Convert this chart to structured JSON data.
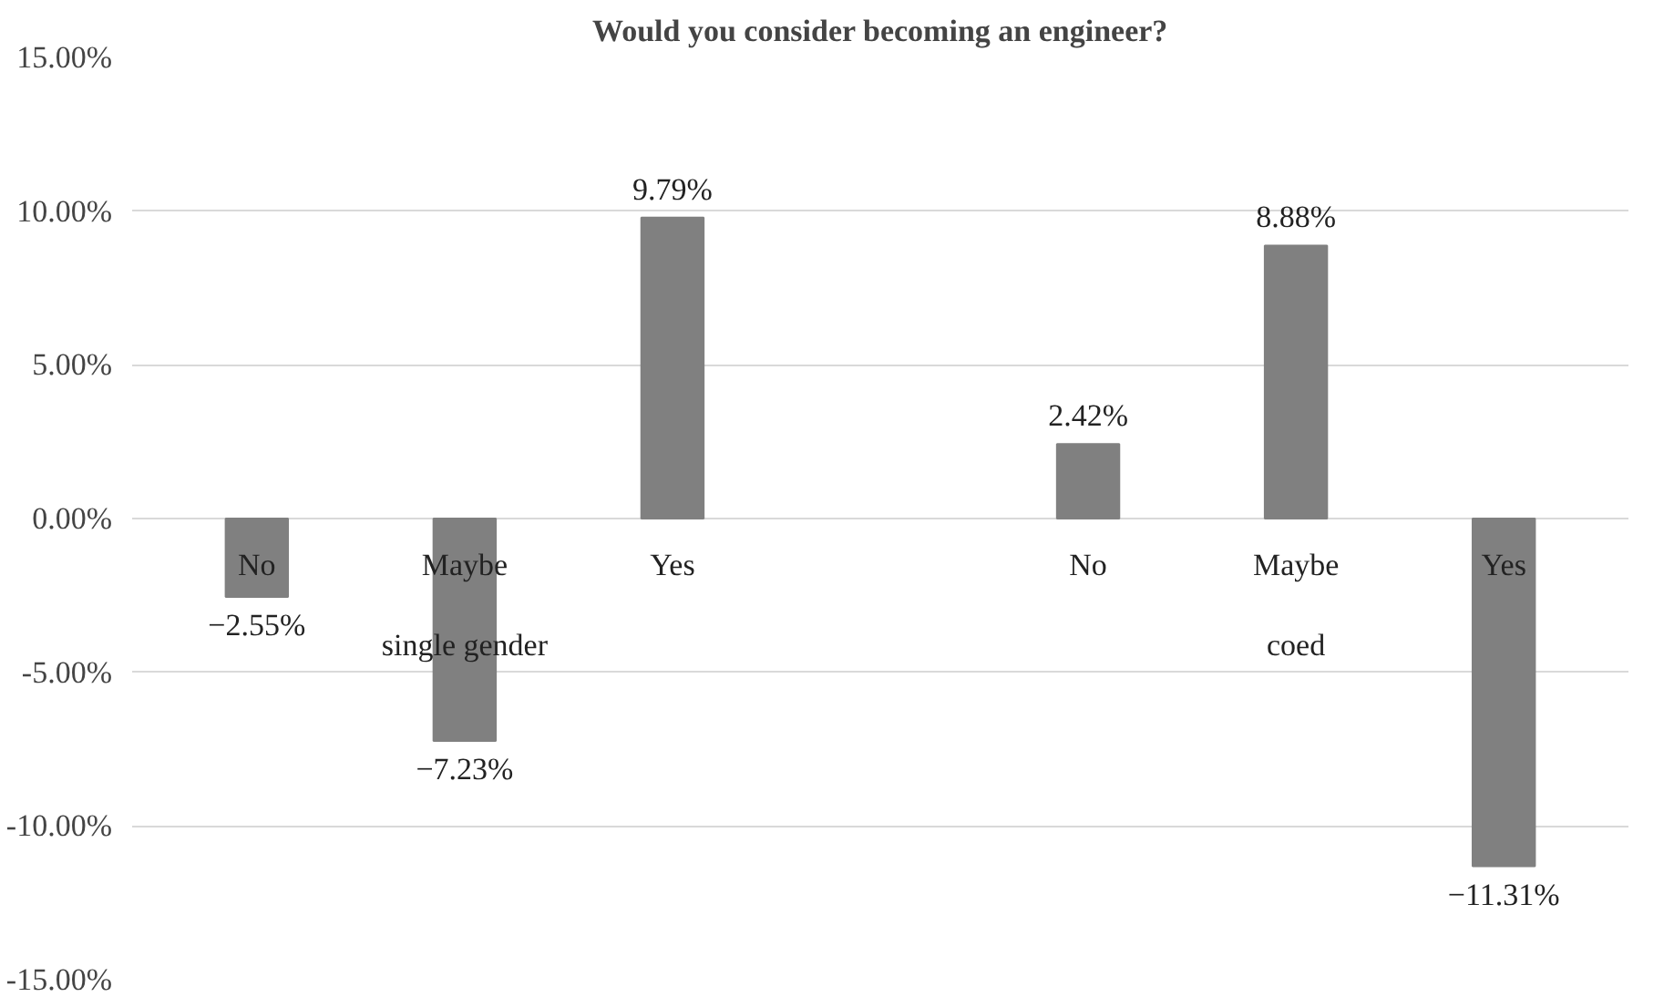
{
  "chart_data": {
    "type": "bar",
    "title": "Would you consider becoming an engineer?",
    "categories": [
      "No",
      "Maybe",
      "Yes",
      null,
      "No",
      "Maybe",
      "Yes"
    ],
    "values": [
      -2.55,
      -7.23,
      9.79,
      null,
      2.42,
      8.88,
      -11.31
    ],
    "value_labels": [
      "−2.55%",
      "−7.23%",
      "9.79%",
      null,
      "2.42%",
      "8.88%",
      "−11.31%"
    ],
    "color": "#808080",
    "ylim": [
      -15,
      15
    ],
    "yticks": [
      {
        "value": -15,
        "label": "-15.00%"
      },
      {
        "value": -10,
        "label": "-10.00%"
      },
      {
        "value": -5,
        "label": "-5.00%"
      },
      {
        "value": 0,
        "label": "0.00%"
      },
      {
        "value": 5,
        "label": "5.00%"
      },
      {
        "value": 10,
        "label": "10.00%"
      },
      {
        "value": 15,
        "label": "15.00%"
      }
    ],
    "grid": "y",
    "annotations": [
      "single gender",
      "coed"
    ]
  }
}
